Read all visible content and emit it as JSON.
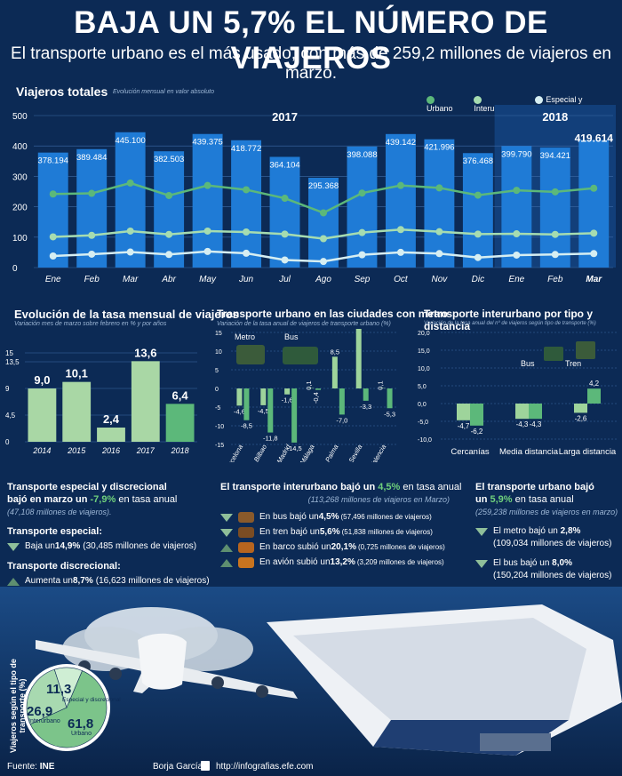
{
  "header": {
    "title": "BAJA UN 5,7% EL NÚMERO DE VIAJEROS",
    "subtitle": "El transporte urbano es el más usado, con más de 259,2 millones de viajeros en marzo."
  },
  "main_chart": {
    "title": "Viajeros totales",
    "subtitle": "Evolución mensual en valor absoluto",
    "year_2017": "2017",
    "year_2018": "2018",
    "legend": [
      "Urbano",
      "Interurbano",
      "Especial y discrecional"
    ]
  },
  "panel_tasa": {
    "title": "Evolución de la tasa mensual de viajeros",
    "subtitle": "Variación mes de marzo sobre febrero en % y por años"
  },
  "panel_metro": {
    "title": "Transporte urbano en las ciudades con metro",
    "subtitle": "Variación de la tasa anual de viajeros de transporte urbano (%)",
    "label_metro": "Metro",
    "label_bus": "Bus"
  },
  "panel_inter": {
    "title": "Transporte interurbano por tipo y distancia",
    "subtitle": "Variación de la tasa anual del nº de viajeros según tipo de transporte (%)",
    "label_bus": "Bus",
    "label_tren": "Tren"
  },
  "col_especial": {
    "title1": "Transporte especial y discrecional",
    "title2_a": "bajó en marzo un ",
    "title2_b": "-7,9%",
    "title2_c": " en tasa anual",
    "note": "(47,108 millones de viajeros).",
    "especial_label": "Transporte especial:",
    "especial_a": "Baja un ",
    "especial_b": "14,9%",
    "especial_c": " (30,485 millones de viajeros)",
    "discrecional_label": "Transporte discrecional:",
    "discrecional_a": "Aumenta un ",
    "discrecional_b": "8,7%",
    "discrecional_c": " (16,623 millones de viajeros)"
  },
  "col_interurbano": {
    "title_a": "El transporte interurbano bajó un ",
    "title_b": "4,5%",
    "title_c": " en tasa anual",
    "note": "(113,268 millones de viajeros en Marzo)",
    "items": [
      {
        "a": "En bus bajó un ",
        "b": "4,5%",
        "c": " (57,496 millones de viajeros)"
      },
      {
        "a": "En tren bajó un ",
        "b": "5,6%",
        "c": " (51,838 millones de viajeros)"
      },
      {
        "a": "En barco subió un ",
        "b": "20,1%",
        "c": " (0,725 millones de viajeros)"
      },
      {
        "a": "En avión subió un ",
        "b": "13,2%",
        "c": " (3,209 millones de viajeros)"
      }
    ]
  },
  "col_urbano": {
    "title1": "El transporte urbano bajó",
    "title2_a": "un ",
    "title2_b": "5,9%",
    "title2_c": " en tasa anual",
    "note": "(259,238 millones de viajeros en marzo)",
    "metro_a": "El metro bajó un ",
    "metro_b": "2,8%",
    "metro_c": "(109,034 millones de viajeros)",
    "bus_a": "El bus bajó un ",
    "bus_b": "8,0%",
    "bus_c": "(150,204 millones de viajeros)"
  },
  "donut": {
    "title": "Viajeros según el tipo de transporte (%)",
    "values": [
      61.8,
      26.9,
      11.3
    ],
    "labels": [
      "Urbano",
      "Interurbano",
      "Especial y discrecional"
    ],
    "value_texts": [
      "61,8",
      "26,9",
      "11,3"
    ],
    "colors": [
      "#7cc48a",
      "#a8d9b0",
      "#cfeed4"
    ]
  },
  "footer": {
    "source_label": "Fuente:",
    "source": "INE",
    "author": "Borja García",
    "url": "http://infografias.efe.com"
  },
  "colors": {
    "bg": "#0c2a55",
    "bar": "#1f7bd6",
    "urbano": "#5cb87a",
    "interurbano": "#a6dcb0",
    "especial": "#d6eef2",
    "tasa": "#a9d7a5",
    "tasa_last": "#5cb87a"
  },
  "chart_data": [
    {
      "type": "bar",
      "title": "Viajeros totales",
      "categories": [
        "Ene",
        "Feb",
        "Mar",
        "Abr",
        "May",
        "Jun",
        "Jul",
        "Ago",
        "Sep",
        "Oct",
        "Nov",
        "Dic",
        "Ene",
        "Feb",
        "Mar"
      ],
      "values": [
        378194,
        389484,
        445100,
        382503,
        439375,
        418772,
        364104,
        295368,
        398088,
        439142,
        421996,
        376468,
        399790,
        394421,
        419614
      ],
      "value_labels": [
        "378.194",
        "389.484",
        "445.100",
        "382.503",
        "439.375",
        "418.772",
        "364.104",
        "295.368",
        "398.088",
        "439.142",
        "421.996",
        "376.468",
        "399.790",
        "394.421",
        "419.614"
      ],
      "yticks": [
        "0",
        "100",
        "200",
        "300",
        "400",
        "500"
      ],
      "ylim": [
        0,
        500
      ],
      "y_unit": "miles",
      "lines": [
        {
          "name": "Urbano",
          "values": [
            242,
            244,
            278,
            237,
            270,
            256,
            228,
            180,
            245,
            270,
            262,
            238,
            254,
            249,
            261
          ]
        },
        {
          "name": "Interurbano",
          "values": [
            101,
            106,
            120,
            109,
            120,
            117,
            110,
            95,
            115,
            125,
            118,
            110,
            111,
            109,
            113
          ]
        },
        {
          "name": "Especial y discrecional",
          "values": [
            38,
            44,
            51,
            43,
            53,
            47,
            25,
            20,
            42,
            50,
            46,
            33,
            41,
            43,
            46
          ]
        }
      ]
    },
    {
      "type": "bar",
      "title": "Evolución de la tasa mensual de viajeros",
      "categories": [
        "2014",
        "2015",
        "2016",
        "2017",
        "2018"
      ],
      "values": [
        9.0,
        10.1,
        2.4,
        13.6,
        6.4
      ],
      "value_labels": [
        "9,0",
        "10,1",
        "2,4",
        "13,6",
        "6,4"
      ],
      "yticks": [
        "0",
        "4,5",
        "9",
        "13,5",
        "15"
      ],
      "ylim": [
        0,
        15
      ]
    },
    {
      "type": "bar",
      "title": "Transporte urbano en las ciudades con metro",
      "categories": [
        "Barcelona",
        "Bilbao",
        "Madrid",
        "Málaga",
        "Palma",
        "Sevilla",
        "Valencia"
      ],
      "series": [
        {
          "name": "Metro",
          "values": [
            -4.6,
            -4.5,
            -1.6,
            0.1,
            8.5,
            17.1,
            0.1
          ],
          "labels": [
            "-4,6",
            "-4,5",
            "-1,6",
            "0,1",
            "8,5",
            "17,1",
            "0,1"
          ]
        },
        {
          "name": "Bus",
          "values": [
            -8.5,
            -11.8,
            -14.5,
            -0.4,
            -7.0,
            -3.3,
            -5.3
          ],
          "labels": [
            "-8,5",
            "-11,8",
            "-14,5",
            "-0,4",
            "-7,0",
            "-3,3",
            "-5,3"
          ]
        }
      ],
      "yticks": [
        "20",
        "15",
        "10",
        "5",
        "0",
        "-5",
        "-10",
        "-15"
      ],
      "ylim": [
        -15,
        20
      ]
    },
    {
      "type": "bar",
      "title": "Transporte interurbano por tipo y distancia",
      "categories": [
        "Cercanías",
        "Media distancia",
        "Larga distancia"
      ],
      "series": [
        {
          "name": "Bus",
          "values": [
            -4.7,
            -4.3,
            -2.6
          ],
          "labels": [
            "-4,7",
            "-4,3",
            "-2,6"
          ]
        },
        {
          "name": "Tren",
          "values": [
            -6.2,
            -4.3,
            4.2
          ],
          "labels": [
            "-6,2",
            "-4,3",
            "4,2"
          ]
        }
      ],
      "yticks": [
        "20,0",
        "15,0",
        "10,0",
        "5,0",
        "0,0",
        "-5,0",
        "-10,0"
      ],
      "ylim": [
        -10,
        20
      ]
    }
  ]
}
